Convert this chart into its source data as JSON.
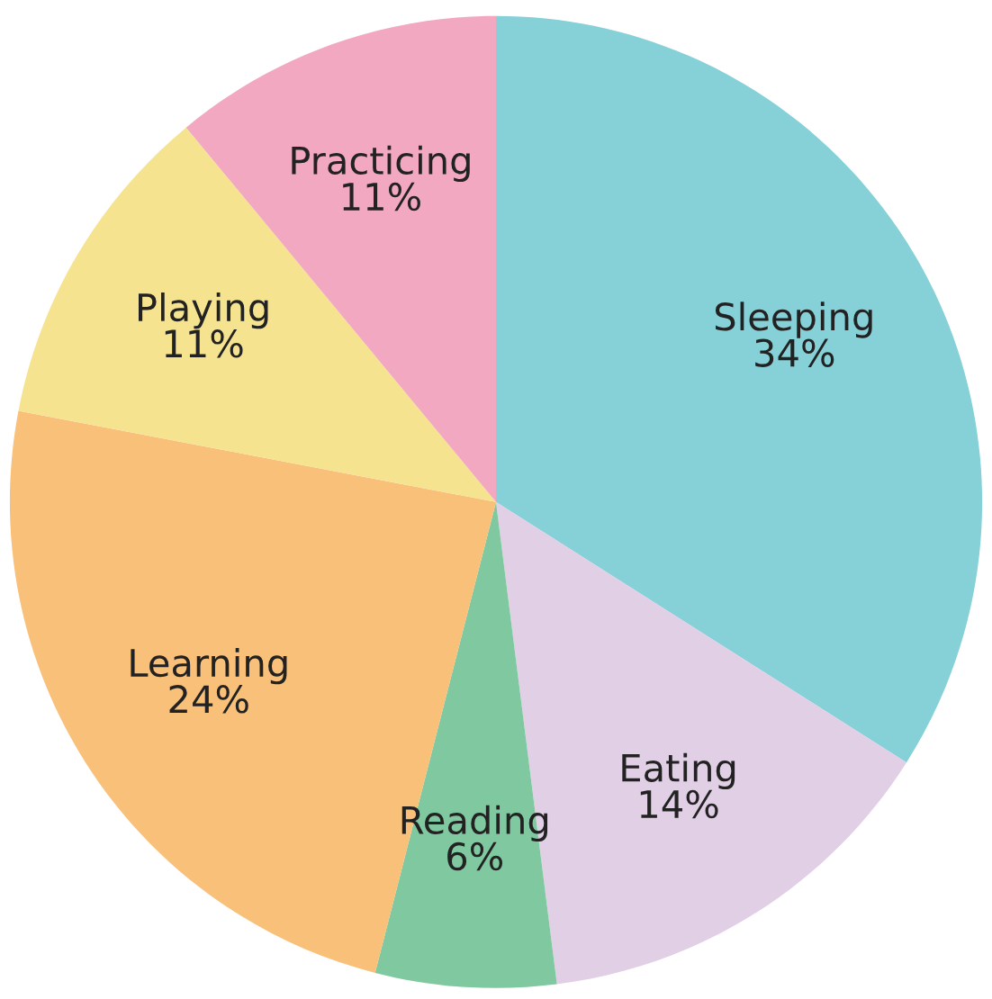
{
  "chart_data": {
    "type": "pie",
    "categories": [
      "Sleeping",
      "Eating",
      "Reading",
      "Learning",
      "Playing",
      "Practicing"
    ],
    "values": [
      34,
      14,
      6,
      24,
      11,
      11
    ],
    "value_labels": [
      "34%",
      "14%",
      "6%",
      "24%",
      "11%",
      "11%"
    ],
    "colors": [
      "#86d0d8",
      "#e0cfe5",
      "#80c9a0",
      "#f9c07a",
      "#f5e38f",
      "#f2a8c0"
    ],
    "legend": false
  }
}
